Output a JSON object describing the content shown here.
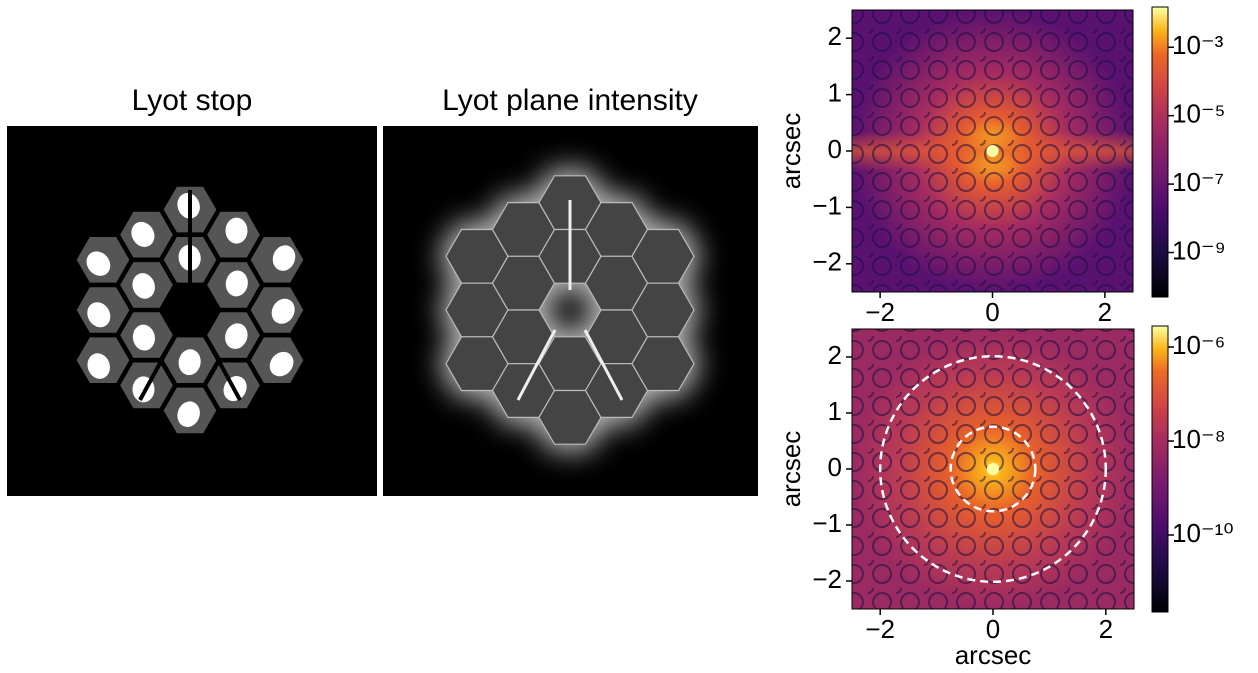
{
  "panels": [
    {
      "title": "Lyot stop"
    },
    {
      "title": "Lyot plane intensity"
    }
  ],
  "chart_data": [
    {
      "type": "heatmap",
      "ylabel": "arcsec",
      "xlim": [
        -2.5,
        2.5
      ],
      "ylim": [
        -2.5,
        2.5
      ],
      "xticks": [
        {
          "value": -2,
          "label": "−2"
        },
        0,
        2
      ],
      "yticks": [
        {
          "value": -2,
          "label": "−2"
        },
        {
          "value": -1,
          "label": "−1"
        },
        0,
        1,
        2
      ],
      "colorbar": {
        "log_scale": true,
        "clim": [
          5e-11,
          0.015
        ],
        "ticks": [
          {
            "value": 0.001,
            "label": "10⁻³"
          },
          {
            "value": 1e-05,
            "label": "10⁻⁵"
          },
          {
            "value": 1e-07,
            "label": "10⁻⁷"
          },
          {
            "value": 1e-09,
            "label": "10⁻⁹"
          }
        ]
      }
    },
    {
      "type": "heatmap",
      "xlabel": "arcsec",
      "ylabel": "arcsec",
      "xlim": [
        -2.5,
        2.5
      ],
      "ylim": [
        -2.5,
        2.5
      ],
      "xticks": [
        {
          "value": -2,
          "label": "−2"
        },
        0,
        2
      ],
      "yticks": [
        {
          "value": -2,
          "label": "−2"
        },
        {
          "value": -1,
          "label": "−1"
        },
        0,
        1,
        2
      ],
      "circle_radii": [
        0.75,
        2
      ],
      "colorbar": {
        "log_scale": true,
        "clim": [
          2.3e-12,
          2.8e-06
        ],
        "ticks": [
          {
            "value": 1e-06,
            "label": "10⁻⁶"
          },
          {
            "value": 1e-08,
            "label": "10⁻⁸"
          },
          {
            "value": 1e-10,
            "label": "10⁻¹⁰"
          }
        ]
      }
    }
  ]
}
